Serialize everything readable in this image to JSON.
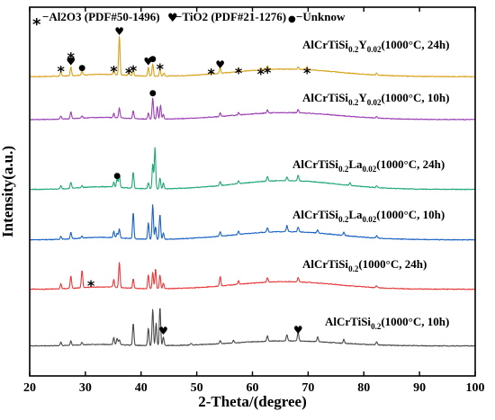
{
  "chart_data": {
    "type": "line",
    "title": "",
    "xlabel": "2-Theta/(degree)",
    "ylabel": "Intensity(a.u.)",
    "xlim": [
      20,
      100
    ],
    "x_ticks": [
      "20",
      "30",
      "40",
      "50",
      "60",
      "70",
      "80",
      "90",
      "100"
    ],
    "y_ticks": false,
    "grid": false,
    "legend": {
      "position": "top",
      "entries": [
        {
          "symbol": "*",
          "label": "−Al2O3 (PDF#50-1496)"
        },
        {
          "symbol": "♥",
          "label": "−TiO2 (PDF#21-1276)"
        },
        {
          "symbol": "●",
          "label": "−Unknow"
        }
      ]
    },
    "series": [
      {
        "name": "AlCrTiSi0.2Y0.02(1000°C, 24h)",
        "label_parts": [
          [
            "AlCrTiSi",
            ""
          ],
          [
            "0.2",
            "sub"
          ],
          [
            "Y",
            ""
          ],
          [
            "0.02",
            "sub"
          ],
          [
            "(1000°C, 24h)",
            ""
          ]
        ],
        "color": "#d9a21b",
        "baseline": 0.04,
        "hump": 0.12,
        "noise": 0.006,
        "peaks": [
          [
            25.6,
            0.08
          ],
          [
            27.4,
            0.14
          ],
          [
            29.4,
            0.06
          ],
          [
            35.1,
            0.08
          ],
          [
            36.1,
            0.62
          ],
          [
            37.8,
            0.05
          ],
          [
            38.6,
            0.09
          ],
          [
            41.3,
            0.14
          ],
          [
            42.1,
            0.2
          ],
          [
            43.4,
            0.12
          ],
          [
            44.1,
            0.05
          ],
          [
            52.6,
            0.04
          ],
          [
            54.2,
            0.09
          ],
          [
            57.5,
            0.05
          ],
          [
            61.5,
            0.04
          ],
          [
            62.7,
            0.06
          ],
          [
            68.2,
            0.04
          ],
          [
            69.8,
            0.05
          ],
          [
            82.3,
            0.03
          ]
        ],
        "markers": [
          {
            "x": 25.6,
            "symbol": "*"
          },
          {
            "x": 27.4,
            "symbol": "♥"
          },
          {
            "x": 27.4,
            "symbol": "*"
          },
          {
            "x": 29.4,
            "symbol": "●"
          },
          {
            "x": 35.1,
            "symbol": "*"
          },
          {
            "x": 36.1,
            "symbol": "♥"
          },
          {
            "x": 37.8,
            "symbol": "*"
          },
          {
            "x": 38.6,
            "symbol": "*"
          },
          {
            "x": 41.3,
            "symbol": "♥"
          },
          {
            "x": 42.1,
            "symbol": "●"
          },
          {
            "x": 43.4,
            "symbol": "*"
          },
          {
            "x": 52.6,
            "symbol": "*"
          },
          {
            "x": 54.2,
            "symbol": "♥"
          },
          {
            "x": 57.5,
            "symbol": "*"
          },
          {
            "x": 61.5,
            "symbol": "*"
          },
          {
            "x": 62.7,
            "symbol": "*"
          },
          {
            "x": 69.8,
            "symbol": "*"
          }
        ]
      },
      {
        "name": "AlCrTiSi0.2Y0.02(1000°C, 10h)",
        "label_parts": [
          [
            "AlCrTiSi",
            ""
          ],
          [
            "0.2",
            "sub"
          ],
          [
            "Y",
            ""
          ],
          [
            "0.02",
            "sub"
          ],
          [
            "(1000°C, 10h)",
            ""
          ]
        ],
        "color": "#9b3fb5",
        "baseline": 0.03,
        "hump": 0.11,
        "noise": 0.006,
        "peaks": [
          [
            25.6,
            0.05
          ],
          [
            27.4,
            0.11
          ],
          [
            29.4,
            0.04
          ],
          [
            35.1,
            0.07
          ],
          [
            36.1,
            0.16
          ],
          [
            38.6,
            0.13
          ],
          [
            41.3,
            0.1
          ],
          [
            42.1,
            0.34
          ],
          [
            42.9,
            0.2
          ],
          [
            43.5,
            0.22
          ],
          [
            44.0,
            0.08
          ],
          [
            54.2,
            0.06
          ],
          [
            57.5,
            0.04
          ],
          [
            62.7,
            0.05
          ],
          [
            68.2,
            0.05
          ],
          [
            82.3,
            0.03
          ]
        ],
        "markers": [
          {
            "x": 42.1,
            "symbol": "●"
          }
        ]
      },
      {
        "name": "AlCrTiSi0.2La0.02(1000°C, 24h)",
        "label_parts": [
          [
            "AlCrTiSi",
            ""
          ],
          [
            "0.2",
            "sub"
          ],
          [
            "La",
            ""
          ],
          [
            "0.02",
            "sub"
          ],
          [
            "(1000°C, 24h)",
            ""
          ]
        ],
        "color": "#1fa876",
        "baseline": 0.02,
        "hump": 0.14,
        "noise": 0.006,
        "peaks": [
          [
            25.6,
            0.05
          ],
          [
            27.4,
            0.1
          ],
          [
            29.4,
            0.03
          ],
          [
            35.1,
            0.08
          ],
          [
            35.7,
            0.14
          ],
          [
            36.1,
            0.2
          ],
          [
            38.6,
            0.26
          ],
          [
            41.3,
            0.1
          ],
          [
            42.1,
            0.4
          ],
          [
            42.5,
            0.66
          ],
          [
            43.4,
            0.18
          ],
          [
            44.0,
            0.09
          ],
          [
            54.2,
            0.06
          ],
          [
            57.5,
            0.05
          ],
          [
            62.7,
            0.07
          ],
          [
            66.2,
            0.06
          ],
          [
            68.2,
            0.09
          ],
          [
            77.5,
            0.04
          ],
          [
            82.3,
            0.03
          ]
        ],
        "markers": [
          {
            "x": 35.7,
            "symbol": "●"
          }
        ]
      },
      {
        "name": "AlCrTiSi0.2La0.02(1000°C, 10h)",
        "label_parts": [
          [
            "AlCrTiSi",
            ""
          ],
          [
            "0.2",
            "sub"
          ],
          [
            "La",
            ""
          ],
          [
            "0.02",
            "sub"
          ],
          [
            "(1000°C, 10h)",
            ""
          ]
        ],
        "color": "#1c63c4",
        "baseline": 0.02,
        "hump": 0.13,
        "noise": 0.006,
        "peaks": [
          [
            25.6,
            0.05
          ],
          [
            27.4,
            0.1
          ],
          [
            29.4,
            0.03
          ],
          [
            35.1,
            0.1
          ],
          [
            35.7,
            0.07
          ],
          [
            36.1,
            0.14
          ],
          [
            38.6,
            0.42
          ],
          [
            41.3,
            0.26
          ],
          [
            42.1,
            0.55
          ],
          [
            42.6,
            0.2
          ],
          [
            43.4,
            0.4
          ],
          [
            44.0,
            0.1
          ],
          [
            54.2,
            0.07
          ],
          [
            57.5,
            0.05
          ],
          [
            62.7,
            0.07
          ],
          [
            66.2,
            0.1
          ],
          [
            68.2,
            0.08
          ],
          [
            71.7,
            0.05
          ],
          [
            76.4,
            0.05
          ],
          [
            82.3,
            0.04
          ]
        ],
        "markers": []
      },
      {
        "name": "AlCrTiSi0.2(1000°C, 24h)",
        "label_parts": [
          [
            "AlCrTiSi",
            ""
          ],
          [
            "0.2",
            "sub"
          ],
          [
            "(1000°C, 24h)",
            ""
          ]
        ],
        "color": "#e8393a",
        "baseline": 0.02,
        "hump": 0.12,
        "noise": 0.006,
        "peaks": [
          [
            25.6,
            0.08
          ],
          [
            27.4,
            0.2
          ],
          [
            29.4,
            0.28
          ],
          [
            35.1,
            0.12
          ],
          [
            36.1,
            0.4
          ],
          [
            38.6,
            0.15
          ],
          [
            41.3,
            0.22
          ],
          [
            42.1,
            0.26
          ],
          [
            42.6,
            0.32
          ],
          [
            43.4,
            0.22
          ],
          [
            44.0,
            0.09
          ],
          [
            54.2,
            0.15
          ],
          [
            57.5,
            0.06
          ],
          [
            62.7,
            0.07
          ],
          [
            68.2,
            0.07
          ],
          [
            82.3,
            0.03
          ]
        ],
        "markers": [
          {
            "x": 31.0,
            "symbol": "*"
          }
        ]
      },
      {
        "name": "AlCrTiSi0.2(1000°C, 10h)",
        "label_parts": [
          [
            "AlCrTiSi",
            ""
          ],
          [
            "0.2",
            "sub"
          ],
          [
            "(1000°C, 10h)",
            ""
          ]
        ],
        "color": "#4a4a4a",
        "baseline": 0.02,
        "hump": 0.08,
        "noise": 0.006,
        "peaks": [
          [
            25.6,
            0.06
          ],
          [
            27.4,
            0.07
          ],
          [
            29.4,
            0.04
          ],
          [
            35.1,
            0.12
          ],
          [
            35.7,
            0.1
          ],
          [
            36.1,
            0.08
          ],
          [
            38.6,
            0.35
          ],
          [
            41.3,
            0.28
          ],
          [
            42.1,
            0.58
          ],
          [
            42.7,
            0.36
          ],
          [
            43.4,
            0.62
          ],
          [
            44.0,
            0.14
          ],
          [
            49.0,
            0.03
          ],
          [
            54.2,
            0.05
          ],
          [
            56.6,
            0.04
          ],
          [
            62.7,
            0.09
          ],
          [
            66.2,
            0.1
          ],
          [
            68.2,
            0.15
          ],
          [
            71.7,
            0.08
          ],
          [
            76.4,
            0.06
          ],
          [
            82.3,
            0.05
          ]
        ],
        "markers": [
          {
            "x": 44.0,
            "symbol": "♥"
          },
          {
            "x": 68.2,
            "symbol": "♥"
          }
        ]
      }
    ]
  }
}
